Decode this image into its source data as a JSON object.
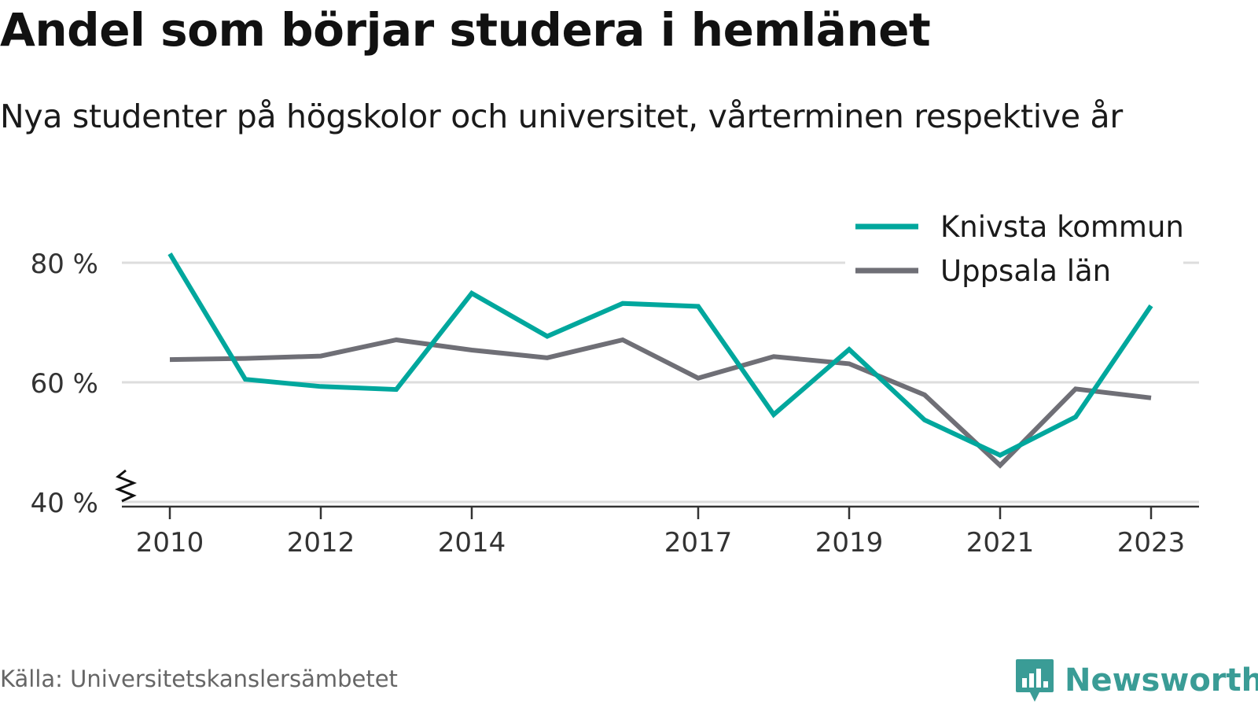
{
  "title": "Andel som börjar studera i hemlänet",
  "subtitle": "Nya studenter på högskolor och universitet, vårterminen respektive år",
  "source": "Källa: Universitetskanslersämbetet",
  "brand": {
    "name": "Newsworthy",
    "icon": "newsworthy-logo-icon"
  },
  "colors": {
    "knivsta": "#00a79d",
    "uppsala": "#6f6f76",
    "grid": "#dddddd",
    "axis": "#333333"
  },
  "chart_data": {
    "type": "line",
    "title": "Andel som börjar studera i hemlänet",
    "subtitle": "Nya studenter på högskolor och universitet, vårterminen respektive år",
    "x": [
      2010,
      2011,
      2012,
      2013,
      2014,
      2015,
      2016,
      2017,
      2018,
      2019,
      2020,
      2021,
      2022,
      2023
    ],
    "x_tick_values": [
      2010,
      2012,
      2014,
      2017,
      2019,
      2021,
      2023
    ],
    "x_tick_labels": [
      "2010",
      "2012",
      "2014",
      "2017",
      "2019",
      "2021",
      "2023"
    ],
    "y_tick_values": [
      40,
      60,
      80
    ],
    "y_tick_labels": [
      "40 %",
      "60 %",
      "80 %"
    ],
    "ylim": [
      40,
      84
    ],
    "y_axis_broken": true,
    "grid": true,
    "legend_position": "top-right",
    "series": [
      {
        "name": "Knivsta kommun",
        "color": "#00a79d",
        "values": [
          81.5,
          60.5,
          59.3,
          58.8,
          74.9,
          67.7,
          73.2,
          72.7,
          54.6,
          65.5,
          53.7,
          47.8,
          54.2,
          72.8
        ]
      },
      {
        "name": "Uppsala län",
        "color": "#6f6f76",
        "values": [
          63.8,
          64.0,
          64.4,
          67.1,
          65.4,
          64.1,
          67.1,
          60.7,
          64.3,
          63.1,
          57.9,
          46.1,
          58.9,
          57.4
        ]
      }
    ]
  }
}
